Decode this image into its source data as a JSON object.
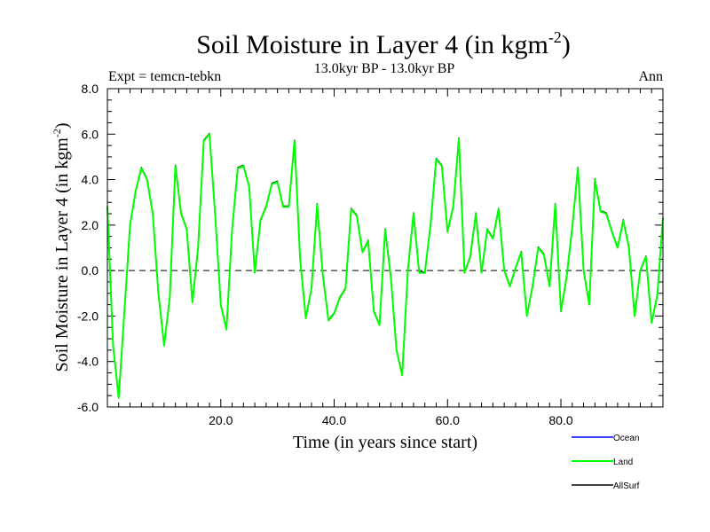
{
  "chart_data": {
    "type": "line",
    "title": "Soil Moisture in Layer 4 (in kgm",
    "title_exponent": "-2",
    "title_close": ")",
    "subtitle": "13.0kyr BP - 13.0kyr BP",
    "left_annotation": "Expt = temcn-tebkn",
    "right_annotation": "Ann",
    "xlabel": "Time (in years since start)",
    "ylabel": "Soil Moisture in Layer 4 (in kgm",
    "ylabel_exponent": "-2",
    "ylabel_close": ")",
    "xlim": [
      0,
      98
    ],
    "ylim": [
      -6,
      8
    ],
    "x_ticks": [
      20,
      40,
      60,
      80
    ],
    "x_tick_labels": [
      "20.0",
      "40.0",
      "60.0",
      "80.0"
    ],
    "y_ticks": [
      -6,
      -4,
      -2,
      0,
      2,
      4,
      6,
      8
    ],
    "y_tick_labels": [
      "-6.0",
      "-4.0",
      "-2.0",
      "0.0",
      "2.0",
      "4.0",
      "6.0",
      "8.0"
    ],
    "zero_line": true,
    "x": [
      0,
      1,
      2,
      3,
      4,
      5,
      6,
      7,
      8,
      9,
      10,
      11,
      12,
      13,
      14,
      15,
      16,
      17,
      18,
      19,
      20,
      21,
      22,
      23,
      24,
      25,
      26,
      27,
      28,
      29,
      30,
      31,
      32,
      33,
      34,
      35,
      36,
      37,
      38,
      39,
      40,
      41,
      42,
      43,
      44,
      45,
      46,
      47,
      48,
      49,
      50,
      51,
      52,
      53,
      54,
      55,
      56,
      57,
      58,
      59,
      60,
      61,
      62,
      63,
      64,
      65,
      66,
      67,
      68,
      69,
      70,
      71,
      72,
      73,
      74,
      75,
      76,
      77,
      78,
      79,
      80,
      81,
      82,
      83,
      84,
      85,
      86,
      87,
      88,
      89,
      90,
      91,
      92,
      93,
      94,
      95,
      96,
      97,
      98
    ],
    "series": [
      {
        "name": "Ocean",
        "color": "#0000ff",
        "values": [
          2.8,
          -3.3,
          -5.6,
          -1.8,
          2.0,
          3.5,
          4.5,
          4.0,
          2.5,
          -1.0,
          -3.3,
          -1.2,
          4.6,
          2.5,
          1.8,
          -1.4,
          1.0,
          5.7,
          6.0,
          2.5,
          -1.5,
          -2.6,
          1.8,
          4.5,
          4.6,
          3.7,
          -0.1,
          2.2,
          2.8,
          3.8,
          3.9,
          2.8,
          2.8,
          5.7,
          0.5,
          -2.1,
          -0.8,
          2.9,
          -0.2,
          -2.2,
          -1.9,
          -1.2,
          -0.8,
          2.7,
          2.4,
          0.8,
          1.3,
          -1.8,
          -2.4,
          1.8,
          -0.3,
          -3.5,
          -4.6,
          0.0,
          2.5,
          -0.1,
          -0.1,
          2.0,
          4.9,
          4.6,
          1.7,
          2.8,
          5.8,
          -0.1,
          0.6,
          2.5,
          -0.1,
          1.8,
          1.4,
          2.7,
          0.0,
          -0.7,
          0.1,
          0.8,
          -2.0,
          -0.7,
          1.0,
          0.7,
          -0.7,
          2.9,
          -1.8,
          -0.3,
          1.9,
          4.5,
          0.0,
          -1.5,
          4.0,
          2.6,
          2.5,
          1.7,
          1.0,
          2.2,
          1.0,
          -2.0,
          0.0,
          0.6,
          -2.3,
          -1.1,
          2.3
        ]
      },
      {
        "name": "Land",
        "color": "#00ff00",
        "values": [
          2.8,
          -3.3,
          -5.6,
          -1.8,
          2.0,
          3.5,
          4.5,
          4.0,
          2.5,
          -1.0,
          -3.3,
          -1.2,
          4.6,
          2.5,
          1.8,
          -1.4,
          1.0,
          5.7,
          6.0,
          2.5,
          -1.5,
          -2.6,
          1.8,
          4.5,
          4.6,
          3.7,
          -0.1,
          2.2,
          2.8,
          3.8,
          3.9,
          2.8,
          2.8,
          5.7,
          0.5,
          -2.1,
          -0.8,
          2.9,
          -0.2,
          -2.2,
          -1.9,
          -1.2,
          -0.8,
          2.7,
          2.4,
          0.8,
          1.3,
          -1.8,
          -2.4,
          1.8,
          -0.3,
          -3.5,
          -4.6,
          0.0,
          2.5,
          -0.1,
          -0.1,
          2.0,
          4.9,
          4.6,
          1.7,
          2.8,
          5.8,
          -0.1,
          0.6,
          2.5,
          -0.1,
          1.8,
          1.4,
          2.7,
          0.0,
          -0.7,
          0.1,
          0.8,
          -2.0,
          -0.7,
          1.0,
          0.7,
          -0.7,
          2.9,
          -1.8,
          -0.3,
          1.9,
          4.5,
          0.0,
          -1.5,
          4.0,
          2.6,
          2.5,
          1.7,
          1.0,
          2.2,
          1.0,
          -2.0,
          0.0,
          0.6,
          -2.3,
          -1.1,
          2.3
        ]
      },
      {
        "name": "AllSurf",
        "color": "#000000",
        "values": [
          2.8,
          -3.3,
          -5.6,
          -1.8,
          2.0,
          3.5,
          4.5,
          4.0,
          2.5,
          -1.0,
          -3.3,
          -1.2,
          4.6,
          2.5,
          1.8,
          -1.4,
          1.0,
          5.7,
          6.0,
          2.5,
          -1.5,
          -2.6,
          1.8,
          4.5,
          4.6,
          3.7,
          -0.1,
          2.2,
          2.8,
          3.8,
          3.9,
          2.8,
          2.8,
          5.7,
          0.5,
          -2.1,
          -0.8,
          2.9,
          -0.2,
          -2.2,
          -1.9,
          -1.2,
          -0.8,
          2.7,
          2.4,
          0.8,
          1.3,
          -1.8,
          -2.4,
          1.8,
          -0.3,
          -3.5,
          -4.6,
          0.0,
          2.5,
          -0.1,
          -0.1,
          2.0,
          4.9,
          4.6,
          1.7,
          2.8,
          5.8,
          -0.1,
          0.6,
          2.5,
          -0.1,
          1.8,
          1.4,
          2.7,
          0.0,
          -0.7,
          0.1,
          0.8,
          -2.0,
          -0.7,
          1.0,
          0.7,
          -0.7,
          2.9,
          -1.8,
          -0.3,
          1.9,
          4.5,
          0.0,
          -1.5,
          4.0,
          2.6,
          2.5,
          1.7,
          1.0,
          2.2,
          1.0,
          -2.0,
          0.0,
          0.6,
          -2.3,
          -1.1,
          2.3
        ]
      }
    ],
    "legend_position": "bottom-right"
  }
}
